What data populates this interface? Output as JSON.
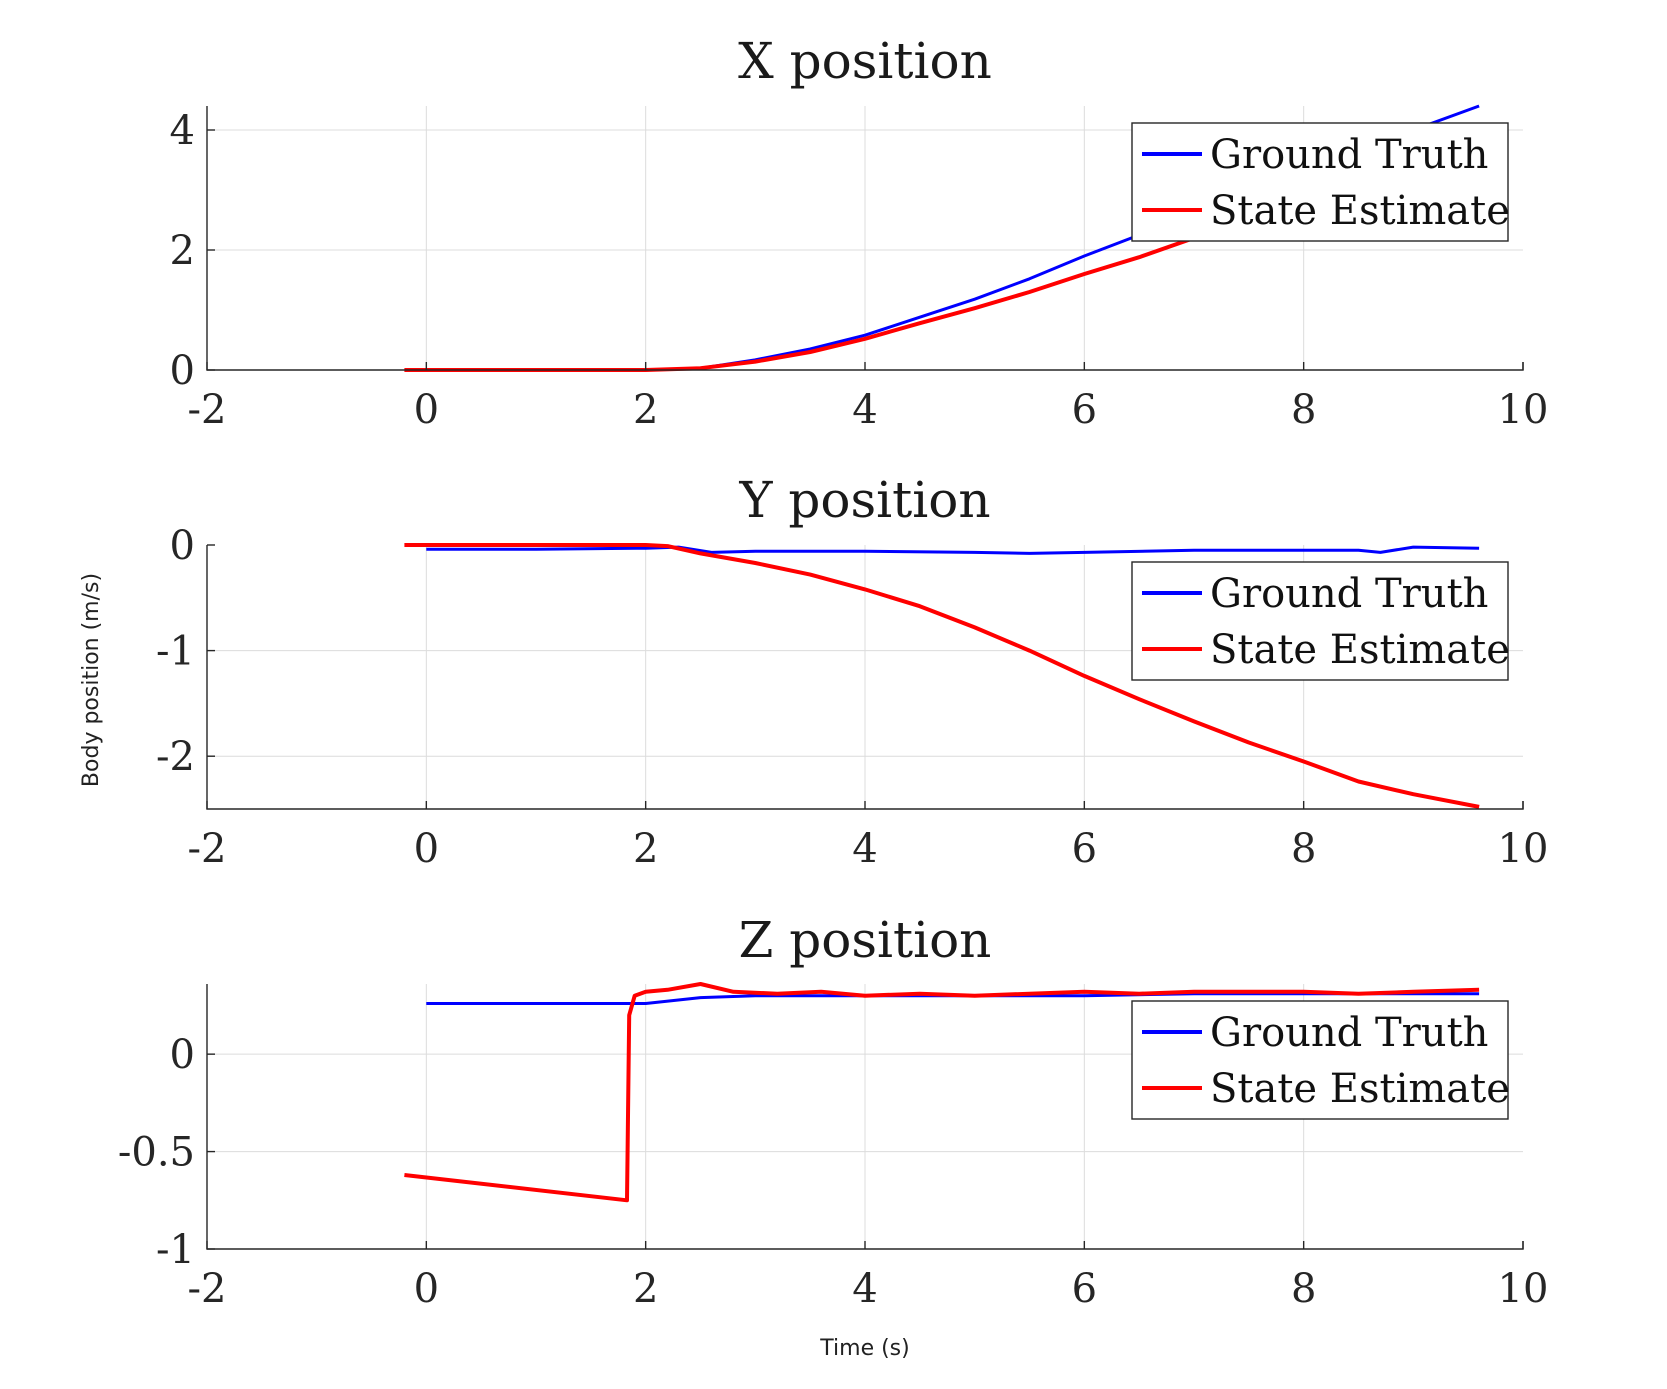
{
  "colors": {
    "ground_truth": "#0000ff",
    "state_estimate": "#ff0000"
  },
  "shared": {
    "xlabel": "Time (s)",
    "ylabel": "Body position (m/s)"
  },
  "chart_data": [
    {
      "type": "line",
      "title": "X position",
      "xlim": [
        -2,
        10
      ],
      "ylim": [
        0,
        4.4
      ],
      "xticks": [
        -2,
        0,
        2,
        4,
        6,
        8,
        10
      ],
      "yticks": [
        0,
        2,
        4
      ],
      "ytick_labels": [
        "0",
        "2",
        "4"
      ],
      "grid": true,
      "legend_position": "top-right",
      "series": [
        {
          "name": "Ground Truth",
          "color": "#0000ff",
          "x": [
            0,
            1,
            2,
            2.5,
            3,
            3.5,
            4,
            4.5,
            5,
            5.5,
            6,
            6.5,
            7,
            7.5,
            8,
            8.5,
            9,
            9.6
          ],
          "y": [
            0,
            0,
            0,
            0.03,
            0.17,
            0.35,
            0.58,
            0.88,
            1.18,
            1.52,
            1.9,
            2.25,
            2.6,
            2.95,
            3.3,
            3.65,
            4.0,
            4.4
          ]
        },
        {
          "name": "State Estimate",
          "color": "#ff0000",
          "x": [
            -0.2,
            0,
            1,
            2,
            2.5,
            3,
            3.5,
            4,
            4.5,
            5,
            5.5,
            6,
            6.5,
            7,
            7.5,
            8,
            8.5,
            9,
            9.6
          ],
          "y": [
            0,
            0,
            0,
            0,
            0.03,
            0.14,
            0.3,
            0.52,
            0.78,
            1.03,
            1.3,
            1.6,
            1.88,
            2.2,
            2.55,
            2.9,
            3.25,
            3.6,
            4.0
          ]
        }
      ],
      "legend": [
        "Ground Truth",
        "State Estimate"
      ]
    },
    {
      "type": "line",
      "title": "Y position",
      "xlim": [
        -2,
        10
      ],
      "ylim": [
        -2.5,
        0
      ],
      "xticks": [
        -2,
        0,
        2,
        4,
        6,
        8,
        10
      ],
      "yticks": [
        -2,
        -1,
        0
      ],
      "ytick_labels": [
        "-2",
        "-1",
        "0"
      ],
      "grid": true,
      "legend_position": "top-right",
      "series": [
        {
          "name": "Ground Truth",
          "color": "#0000ff",
          "x": [
            0,
            1,
            2,
            2.3,
            2.6,
            3,
            4,
            5,
            5.5,
            6,
            7,
            8,
            8.5,
            8.7,
            9,
            9.6
          ],
          "y": [
            -0.04,
            -0.04,
            -0.03,
            -0.02,
            -0.07,
            -0.06,
            -0.06,
            -0.07,
            -0.08,
            -0.07,
            -0.05,
            -0.05,
            -0.05,
            -0.07,
            -0.02,
            -0.03
          ]
        },
        {
          "name": "State Estimate",
          "color": "#ff0000",
          "x": [
            -0.2,
            0,
            1,
            2,
            2.2,
            2.5,
            3,
            3.5,
            4,
            4.5,
            5,
            5.5,
            6,
            6.5,
            7,
            7.5,
            8,
            8.5,
            9,
            9.6
          ],
          "y": [
            0,
            0,
            0,
            0,
            -0.01,
            -0.08,
            -0.17,
            -0.28,
            -0.42,
            -0.58,
            -0.78,
            -1.0,
            -1.24,
            -1.46,
            -1.67,
            -1.87,
            -2.05,
            -2.24,
            -2.36,
            -2.48
          ]
        }
      ],
      "legend": [
        "Ground Truth",
        "State Estimate"
      ]
    },
    {
      "type": "line",
      "title": "Z position",
      "xlim": [
        -2,
        10
      ],
      "ylim": [
        -1,
        0.36
      ],
      "xticks": [
        -2,
        0,
        2,
        4,
        6,
        8,
        10
      ],
      "yticks": [
        -1,
        -0.5,
        0
      ],
      "ytick_labels": [
        "-1",
        "-0.5",
        "0"
      ],
      "grid": true,
      "legend_position": "top-right",
      "series": [
        {
          "name": "Ground Truth",
          "color": "#0000ff",
          "x": [
            0,
            1,
            2,
            2.5,
            3,
            4,
            5,
            6,
            7,
            8,
            9,
            9.6
          ],
          "y": [
            0.26,
            0.26,
            0.26,
            0.29,
            0.3,
            0.3,
            0.3,
            0.3,
            0.31,
            0.31,
            0.31,
            0.31
          ]
        },
        {
          "name": "State Estimate",
          "color": "#ff0000",
          "x": [
            -0.2,
            1.83,
            1.85,
            1.9,
            2.0,
            2.2,
            2.5,
            2.8,
            3.2,
            3.6,
            4.0,
            4.5,
            5.0,
            5.5,
            6.0,
            6.5,
            7.0,
            7.5,
            8.0,
            8.5,
            9.0,
            9.6
          ],
          "y": [
            -0.62,
            -0.75,
            0.2,
            0.3,
            0.32,
            0.33,
            0.36,
            0.32,
            0.31,
            0.32,
            0.3,
            0.31,
            0.3,
            0.31,
            0.32,
            0.31,
            0.32,
            0.32,
            0.32,
            0.31,
            0.32,
            0.33
          ]
        }
      ],
      "legend": [
        "Ground Truth",
        "State Estimate"
      ]
    }
  ]
}
